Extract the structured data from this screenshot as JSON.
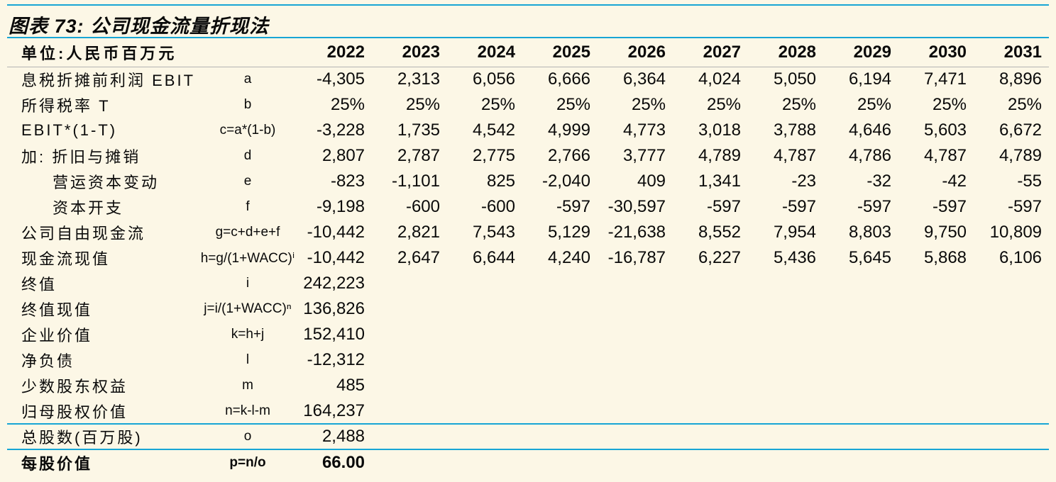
{
  "figure": {
    "title": "图表 73: 公司现金流量折现法"
  },
  "table": {
    "unit_label": "单位:人民币百万元",
    "years": [
      "2022",
      "2023",
      "2024",
      "2025",
      "2026",
      "2027",
      "2028",
      "2029",
      "2030",
      "2031"
    ],
    "rows": [
      {
        "label": "息税折摊前利润 EBIT",
        "formula": "a",
        "indent": false,
        "bold": false,
        "cyan_top": false,
        "values": [
          "-4,305",
          "2,313",
          "6,056",
          "6,666",
          "6,364",
          "4,024",
          "5,050",
          "6,194",
          "7,471",
          "8,896"
        ]
      },
      {
        "label": "所得税率 T",
        "formula": "b",
        "indent": false,
        "bold": false,
        "cyan_top": false,
        "values": [
          "25%",
          "25%",
          "25%",
          "25%",
          "25%",
          "25%",
          "25%",
          "25%",
          "25%",
          "25%"
        ]
      },
      {
        "label": "EBIT*(1-T)",
        "formula": "c=a*(1-b)",
        "indent": false,
        "bold": false,
        "cyan_top": false,
        "values": [
          "-3,228",
          "1,735",
          "4,542",
          "4,999",
          "4,773",
          "3,018",
          "3,788",
          "4,646",
          "5,603",
          "6,672"
        ]
      },
      {
        "label": "加: 折旧与摊销",
        "formula": "d",
        "indent": false,
        "bold": false,
        "cyan_top": false,
        "values": [
          "2,807",
          "2,787",
          "2,775",
          "2,766",
          "3,777",
          "4,789",
          "4,787",
          "4,786",
          "4,787",
          "4,789"
        ]
      },
      {
        "label": "营运资本变动",
        "formula": "e",
        "indent": true,
        "bold": false,
        "cyan_top": false,
        "values": [
          "-823",
          "-1,101",
          "825",
          "-2,040",
          "409",
          "1,341",
          "-23",
          "-32",
          "-42",
          "-55"
        ]
      },
      {
        "label": "资本开支",
        "formula": "f",
        "indent": true,
        "bold": false,
        "cyan_top": false,
        "values": [
          "-9,198",
          "-600",
          "-600",
          "-597",
          "-30,597",
          "-597",
          "-597",
          "-597",
          "-597",
          "-597"
        ]
      },
      {
        "label": "公司自由现金流",
        "formula": "g=c+d+e+f",
        "indent": false,
        "bold": false,
        "cyan_top": false,
        "values": [
          "-10,442",
          "2,821",
          "7,543",
          "5,129",
          "-21,638",
          "8,552",
          "7,954",
          "8,803",
          "9,750",
          "10,809"
        ]
      },
      {
        "label": "现金流现值",
        "formula": "h=g/(1+WACC)ⁱ",
        "indent": false,
        "bold": false,
        "cyan_top": false,
        "values": [
          "-10,442",
          "2,647",
          "6,644",
          "4,240",
          "-16,787",
          "6,227",
          "5,436",
          "5,645",
          "5,868",
          "6,106"
        ]
      },
      {
        "label": "终值",
        "formula": "i",
        "indent": false,
        "bold": false,
        "cyan_top": false,
        "values": [
          "242,223",
          "",
          "",
          "",
          "",
          "",
          "",
          "",
          "",
          ""
        ]
      },
      {
        "label": "终值现值",
        "formula": "j=i/(1+WACC)ⁿ",
        "indent": false,
        "bold": false,
        "cyan_top": false,
        "values": [
          "136,826",
          "",
          "",
          "",
          "",
          "",
          "",
          "",
          "",
          ""
        ]
      },
      {
        "label": "企业价值",
        "formula": "k=h+j",
        "indent": false,
        "bold": false,
        "cyan_top": false,
        "values": [
          "152,410",
          "",
          "",
          "",
          "",
          "",
          "",
          "",
          "",
          ""
        ]
      },
      {
        "label": "净负债",
        "formula": "l",
        "indent": false,
        "bold": false,
        "cyan_top": false,
        "values": [
          "-12,312",
          "",
          "",
          "",
          "",
          "",
          "",
          "",
          "",
          ""
        ]
      },
      {
        "label": "少数股东权益",
        "formula": "m",
        "indent": false,
        "bold": false,
        "cyan_top": false,
        "values": [
          "485",
          "",
          "",
          "",
          "",
          "",
          "",
          "",
          "",
          ""
        ]
      },
      {
        "label": "归母股权价值",
        "formula": "n=k-l-m",
        "indent": false,
        "bold": false,
        "cyan_top": false,
        "values": [
          "164,237",
          "",
          "",
          "",
          "",
          "",
          "",
          "",
          "",
          ""
        ]
      },
      {
        "label": "总股数(百万股)",
        "formula": "o",
        "indent": false,
        "bold": false,
        "cyan_top": true,
        "values": [
          "2,488",
          "",
          "",
          "",
          "",
          "",
          "",
          "",
          "",
          ""
        ]
      },
      {
        "label": "每股价值",
        "formula": "p=n/o",
        "indent": false,
        "bold": true,
        "cyan_top": true,
        "values": [
          "66.00",
          "",
          "",
          "",
          "",
          "",
          "",
          "",
          "",
          ""
        ]
      }
    ]
  },
  "colors": {
    "accent_cyan": "#17a5d5",
    "background_cream": "#fcf7e6",
    "grid_gray": "#b3b3b3",
    "text": "#0a0a0a"
  }
}
